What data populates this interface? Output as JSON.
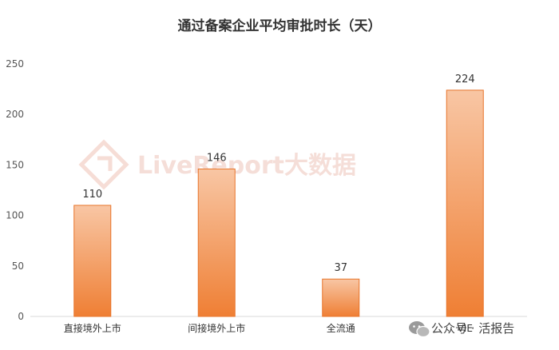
{
  "chart_data": {
    "type": "bar",
    "title": "通过备案企业平均审批时长（天）",
    "categories": [
      "直接境外上市",
      "间接境外上市",
      "全流通",
      "VIE"
    ],
    "values": [
      110,
      146,
      37,
      224
    ],
    "ylim": [
      0,
      250
    ],
    "yticks": [
      0,
      50,
      100,
      150,
      200,
      250
    ],
    "xlabel": "",
    "ylabel": "",
    "grid": false,
    "legend": "none",
    "bar_gradient": [
      "#f8c6a4",
      "#ef7f34"
    ],
    "bar_border": "#e8742a"
  },
  "watermark": {
    "text": "LiveReport大数据",
    "icon": "livereport-logo-icon"
  },
  "footer": {
    "icon": "wechat-icon",
    "text": "公众号 · 活报告"
  }
}
